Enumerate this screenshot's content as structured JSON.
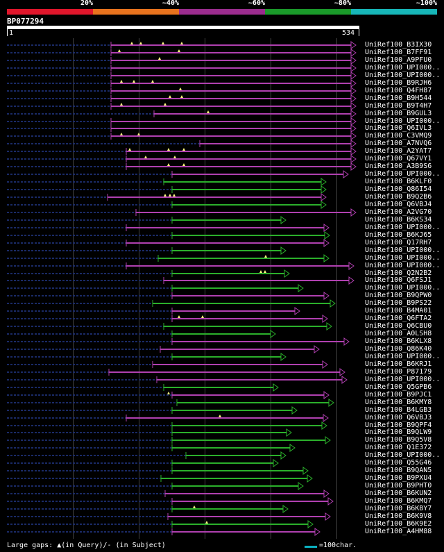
{
  "scale": {
    "labels": [
      "20%",
      "~40%",
      "~60%",
      "~80%",
      "~100%"
    ],
    "colors": [
      "#e0162b",
      "#e8731e",
      "#9b2c8e",
      "#1a9a2a",
      "#17b6b8"
    ]
  },
  "query": {
    "id": "BP077294",
    "start": "1",
    "end": "534"
  },
  "hits": [
    {
      "label": "UniRef100_B3IX30",
      "color": "#b040b0"
    },
    {
      "label": "UniRef100_B7FF91",
      "color": "#b040b0"
    },
    {
      "label": "UniRef100_A9PFU0",
      "color": "#b040b0"
    },
    {
      "label": "UniRef100_UPI000..",
      "color": "#b040b0"
    },
    {
      "label": "UniRef100_UPI000..",
      "color": "#b040b0"
    },
    {
      "label": "UniRef100_B9RJH6",
      "color": "#b040b0"
    },
    {
      "label": "UniRef100_Q4FH87",
      "color": "#b040b0"
    },
    {
      "label": "UniRef100_B9H544",
      "color": "#b040b0"
    },
    {
      "label": "UniRef100_B9T4H7",
      "color": "#b040b0"
    },
    {
      "label": "UniRef100_B9GUL3",
      "color": "#b040b0"
    },
    {
      "label": "UniRef100_UPI000..",
      "color": "#b040b0"
    },
    {
      "label": "UniRef100_Q6IVL3",
      "color": "#b040b0"
    },
    {
      "label": "UniRef100_C3VMQ9",
      "color": "#b040b0"
    },
    {
      "label": "UniRef100_A7NVQ6",
      "color": "#b040b0"
    },
    {
      "label": "UniRef100_A2YAT7",
      "color": "#b040b0"
    },
    {
      "label": "UniRef100_Q67VY1",
      "color": "#b040b0"
    },
    {
      "label": "UniRef100_A3B9S6",
      "color": "#b040b0"
    },
    {
      "label": "UniRef100_UPI000..",
      "color": "#b040b0"
    },
    {
      "label": "UniRef100_B6KLF0",
      "color": "#2bb02b"
    },
    {
      "label": "UniRef100_Q86I54",
      "color": "#2bb02b"
    },
    {
      "label": "UniRef100_B9Q2B6",
      "color": "#b040b0"
    },
    {
      "label": "UniRef100_Q6VBJ4",
      "color": "#2bb02b"
    },
    {
      "label": "UniRef100_A2VG70",
      "color": "#b040b0"
    },
    {
      "label": "UniRef100_B6KS34",
      "color": "#2bb02b"
    },
    {
      "label": "UniRef100_UPI000..",
      "color": "#b040b0"
    },
    {
      "label": "UniRef100_B6KJ65",
      "color": "#2bb02b"
    },
    {
      "label": "UniRef100_Q17RH7",
      "color": "#b040b0"
    },
    {
      "label": "UniRef100_UPI000..",
      "color": "#2bb02b"
    },
    {
      "label": "UniRef100_UPI000..",
      "color": "#2bb02b"
    },
    {
      "label": "UniRef100_UPI000..",
      "color": "#b040b0"
    },
    {
      "label": "UniRef100_Q2N2B2",
      "color": "#2bb02b"
    },
    {
      "label": "UniRef100_Q6FSJ1",
      "color": "#b040b0"
    },
    {
      "label": "UniRef100_UPI000..",
      "color": "#2bb02b"
    },
    {
      "label": "UniRef100_B9QPW0",
      "color": "#b040b0"
    },
    {
      "label": "UniRef100_B9PS22",
      "color": "#2bb02b"
    },
    {
      "label": "UniRef100_B4MA01",
      "color": "#b040b0"
    },
    {
      "label": "UniRef100_Q6FTA2",
      "color": "#b040b0"
    },
    {
      "label": "UniRef100_Q6CBU0",
      "color": "#2bb02b"
    },
    {
      "label": "UniRef100_A0LSH8",
      "color": "#2bb02b"
    },
    {
      "label": "UniRef100_B6KLX8",
      "color": "#b040b0"
    },
    {
      "label": "UniRef100_Q86K40",
      "color": "#b040b0"
    },
    {
      "label": "UniRef100_UPI000..",
      "color": "#2bb02b"
    },
    {
      "label": "UniRef100_B6KRJ1",
      "color": "#b040b0"
    },
    {
      "label": "UniRef100_P87179",
      "color": "#b040b0"
    },
    {
      "label": "UniRef100_UPI000..",
      "color": "#b040b0"
    },
    {
      "label": "UniRef100_Q5GPB6",
      "color": "#2bb02b"
    },
    {
      "label": "UniRef100_B9PJC1",
      "color": "#b040b0"
    },
    {
      "label": "UniRef100_B6KMY8",
      "color": "#2bb02b"
    },
    {
      "label": "UniRef100_B4LGB3",
      "color": "#2bb02b"
    },
    {
      "label": "UniRef100_Q6VBJ3",
      "color": "#b040b0"
    },
    {
      "label": "UniRef100_B9QPF4",
      "color": "#2bb02b"
    },
    {
      "label": "UniRef100_B9QLW9",
      "color": "#2bb02b"
    },
    {
      "label": "UniRef100_B9Q5V8",
      "color": "#2bb02b"
    },
    {
      "label": "UniRef100_Q1E372",
      "color": "#2bb02b"
    },
    {
      "label": "UniRef100_UPI000..",
      "color": "#2bb02b"
    },
    {
      "label": "UniRef100_Q55G46",
      "color": "#2bb02b"
    },
    {
      "label": "UniRef100_B9QAN5",
      "color": "#2bb02b"
    },
    {
      "label": "UniRef100_B9PXU4",
      "color": "#2bb02b"
    },
    {
      "label": "UniRef100_B9PHT0",
      "color": "#2bb02b"
    },
    {
      "label": "UniRef100_B6KUN2",
      "color": "#b040b0"
    },
    {
      "label": "UniRef100_B6KMQ7",
      "color": "#b040b0"
    },
    {
      "label": "UniRef100_B6KBY7",
      "color": "#2bb02b"
    },
    {
      "label": "UniRef100_B6K9V8",
      "color": "#b040b0"
    },
    {
      "label": "UniRef100_B6K9E2",
      "color": "#2bb02b"
    },
    {
      "label": "UniRef100_A4HM88",
      "color": "#b040b0"
    }
  ],
  "legend": {
    "text": "Large gaps: ▲(in Query)/- (in Subject)",
    "unit": "=100char."
  }
}
